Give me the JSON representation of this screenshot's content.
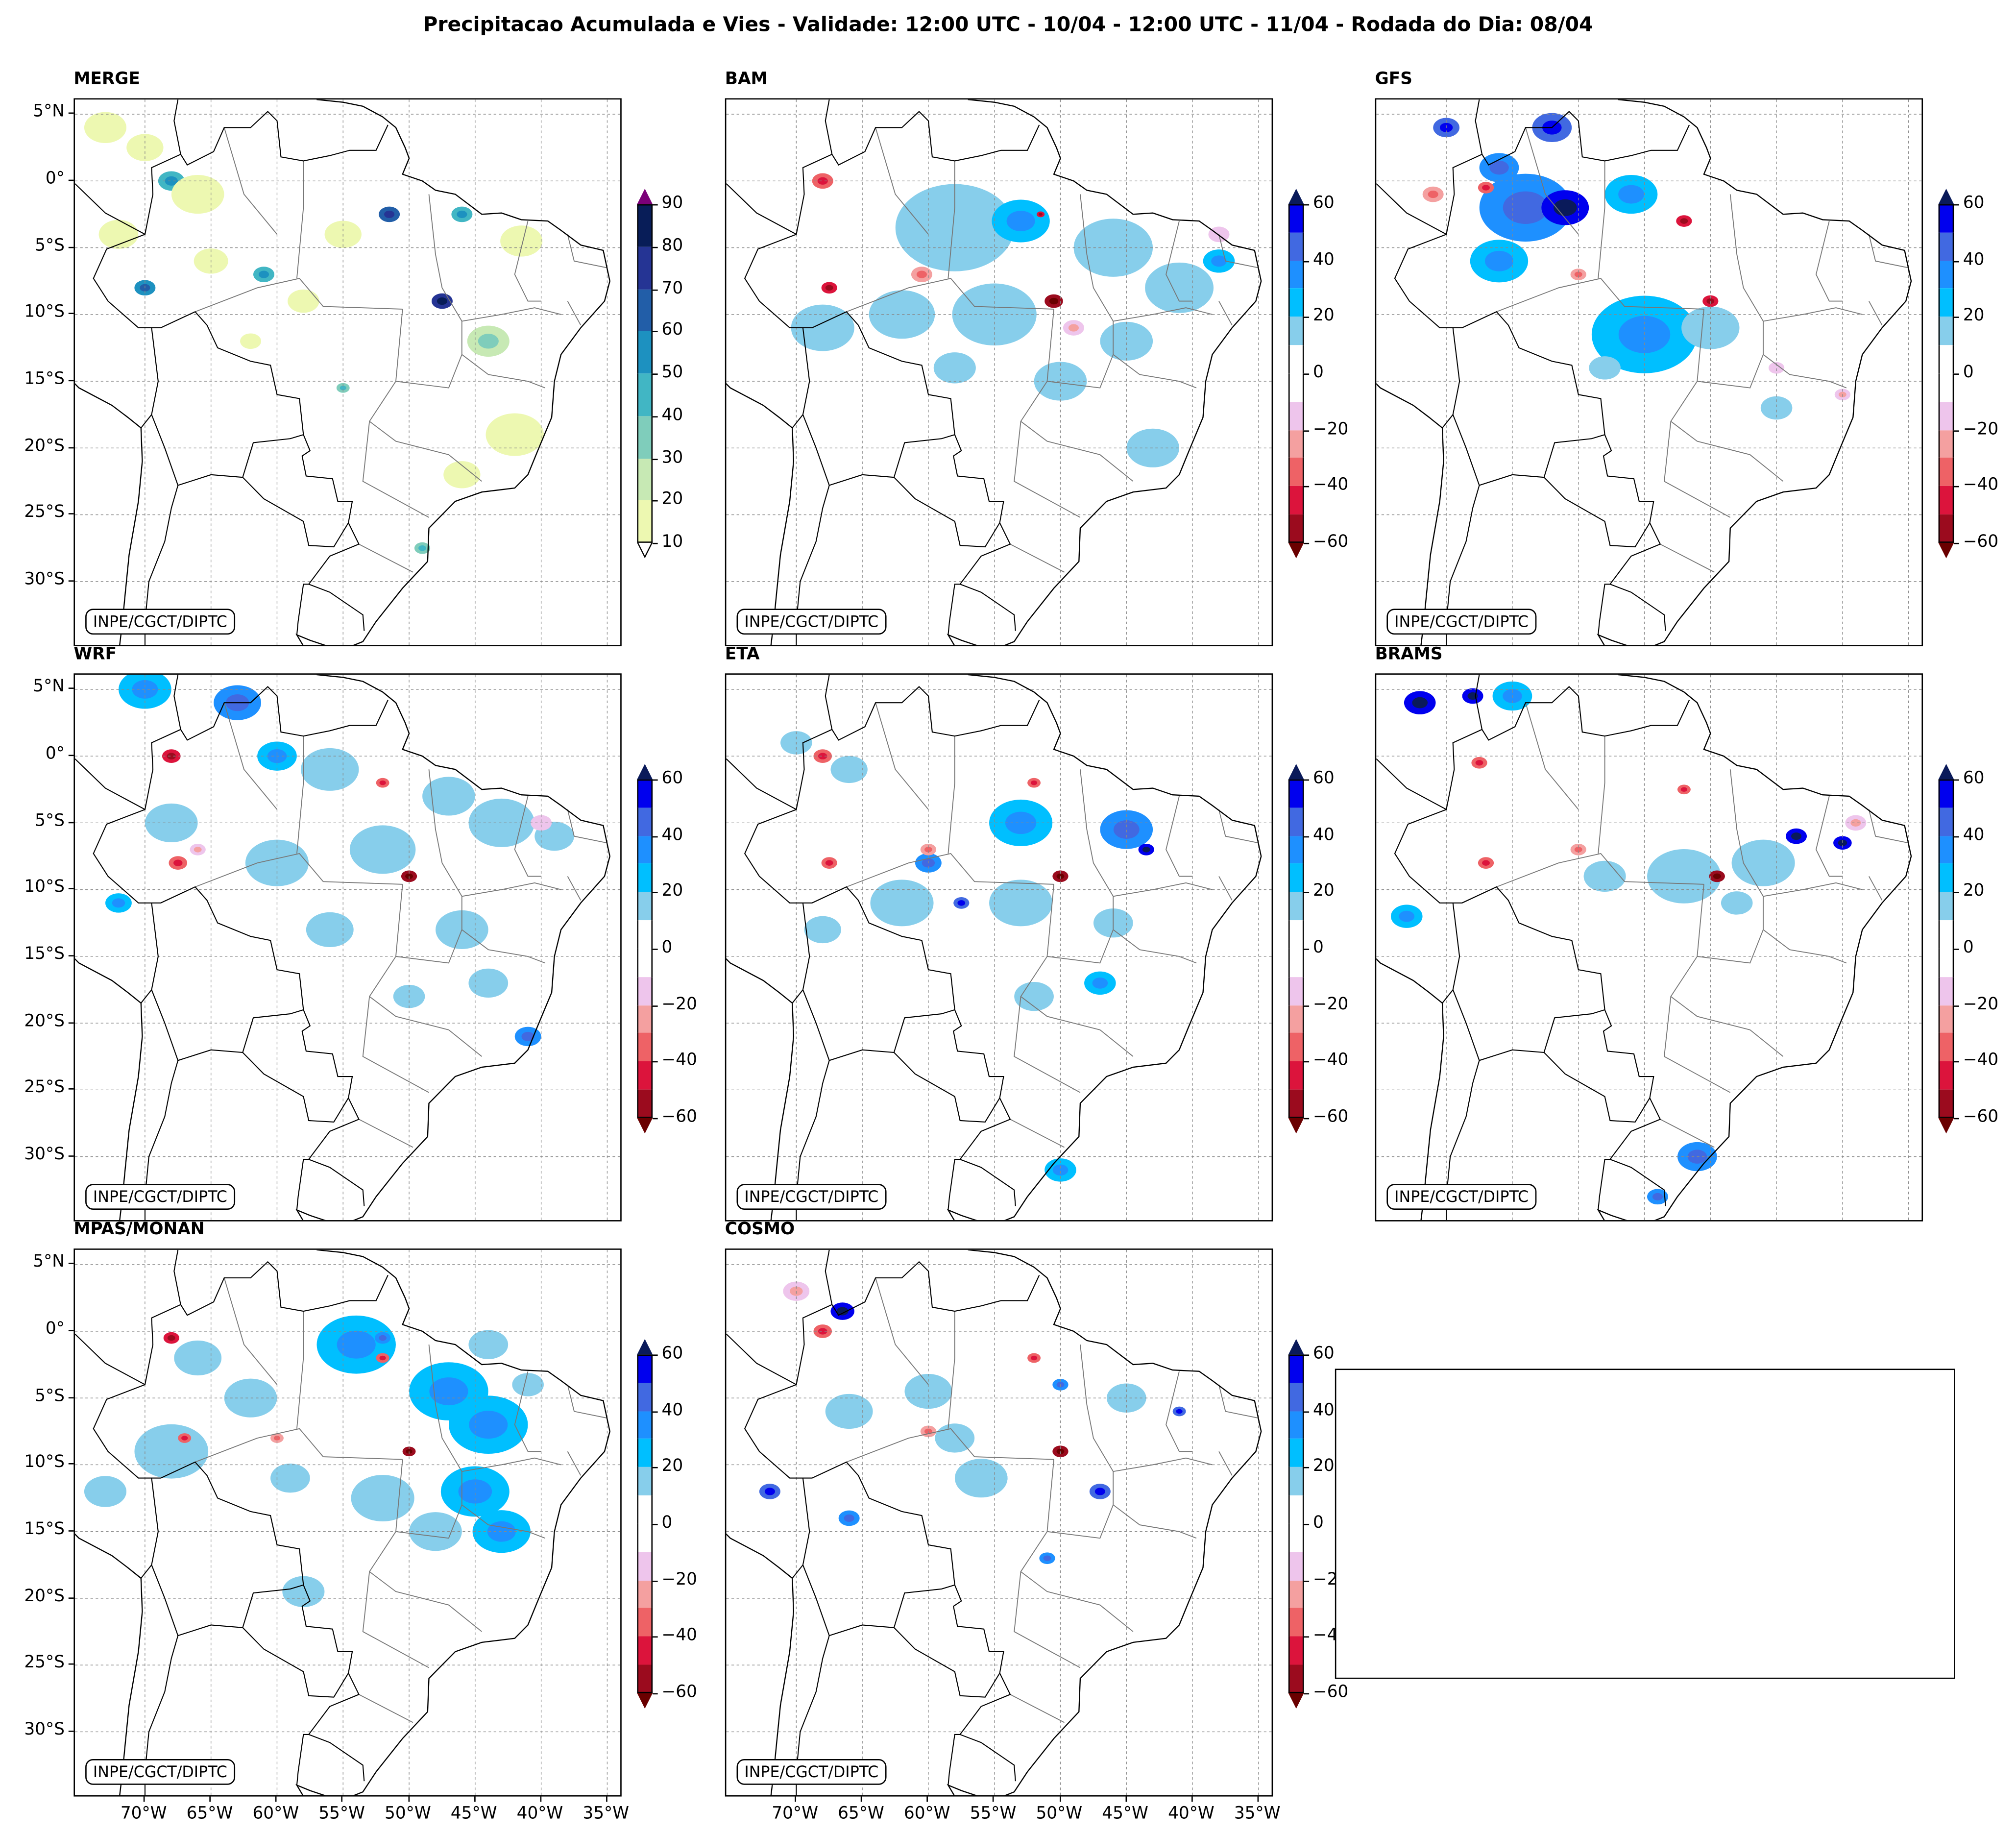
{
  "title": "Precipitacao Acumulada e Vies - Validade: 12:00 UTC - 10/04 - 12:00 UTC - 11/04 - Rodada do Dia: 08/04",
  "credit": "INPE/CGCT/DIPTC",
  "lat_labels": [
    "5°N",
    "0°",
    "5°S",
    "10°S",
    "15°S",
    "20°S",
    "25°S",
    "30°S"
  ],
  "lat_values": [
    5,
    0,
    -5,
    -10,
    -15,
    -20,
    -25,
    -30
  ],
  "lon_labels": [
    "70°W",
    "65°W",
    "60°W",
    "55°W",
    "50°W",
    "45°W",
    "40°W",
    "35°W"
  ],
  "lon_values": [
    -70,
    -65,
    -60,
    -55,
    -50,
    -45,
    -40,
    -35
  ],
  "colorbars": {
    "precip": {
      "levels": [
        10,
        20,
        30,
        40,
        50,
        60,
        70,
        80,
        90
      ],
      "ticks": [
        "10",
        "20",
        "30",
        "40",
        "50",
        "60",
        "70",
        "80",
        "90"
      ],
      "colors": [
        "#edf8b1",
        "#c7e9b4",
        "#7fcdbb",
        "#41b6c4",
        "#1d91c0",
        "#225ea8",
        "#253494",
        "#081d58"
      ],
      "over": "#7b0078",
      "under": "#ffffff"
    },
    "bias": {
      "levels": [
        -60,
        -50,
        -40,
        -30,
        -20,
        -10,
        0,
        10,
        20,
        30,
        40,
        50,
        60
      ],
      "ticks": [
        "−60",
        "−40",
        "−20",
        "0",
        "20",
        "40",
        "60"
      ],
      "colors": [
        "#9b0b1e",
        "#dc143c",
        "#ee6266",
        "#f4a0a0",
        "#eec5ec",
        "#ffffff",
        "#ffffff",
        "#87ceeb",
        "#00bfff",
        "#1e90ff",
        "#4169e1",
        "#0000ee"
      ],
      "over": "#0a1a5a",
      "under": "#6a0000"
    }
  },
  "panels": [
    {
      "title": "MERGE",
      "scale": "precip",
      "cells": [
        [
          -73,
          4,
          12,
          1.6
        ],
        [
          -70,
          2.5,
          14,
          1.4
        ],
        [
          -68,
          0,
          45,
          1.0
        ],
        [
          -66,
          -1,
          12,
          2.0
        ],
        [
          -72,
          -4,
          14,
          1.5
        ],
        [
          -70,
          -8,
          55,
          0.8
        ],
        [
          -65,
          -6,
          15,
          1.3
        ],
        [
          -61,
          -7,
          42,
          0.8
        ],
        [
          -58,
          -9,
          12,
          1.2
        ],
        [
          -55,
          -4,
          13,
          1.4
        ],
        [
          -51.5,
          -2.5,
          62,
          0.8
        ],
        [
          -47.5,
          -9,
          72,
          0.8
        ],
        [
          -46,
          -2.5,
          40,
          0.8
        ],
        [
          -44,
          -12,
          22,
          1.6
        ],
        [
          -41.5,
          -4.5,
          15,
          1.6
        ],
        [
          -42,
          -19,
          14,
          2.2
        ],
        [
          -46,
          -22,
          12,
          1.4
        ],
        [
          -49,
          -27.5,
          35,
          0.6
        ],
        [
          -55,
          -15.5,
          30,
          0.5
        ],
        [
          -62,
          -12,
          12,
          0.8
        ]
      ]
    },
    {
      "title": "BAM",
      "scale": "bias",
      "cells": [
        [
          -58,
          -3.5,
          15,
          4.5
        ],
        [
          -53,
          -3,
          22,
          2.2
        ],
        [
          -46,
          -5,
          15,
          3.0
        ],
        [
          -41,
          -8,
          14,
          2.6
        ],
        [
          -38,
          -6,
          22,
          1.2
        ],
        [
          -55,
          -10,
          14,
          3.2
        ],
        [
          -62,
          -10,
          15,
          2.5
        ],
        [
          -68,
          -11,
          14,
          2.4
        ],
        [
          -45,
          -12,
          15,
          2.0
        ],
        [
          -43,
          -20,
          14,
          2.0
        ],
        [
          -50,
          -15,
          13,
          2.0
        ],
        [
          -58,
          -14,
          14,
          1.6
        ],
        [
          -68,
          0,
          -35,
          0.8
        ],
        [
          -60.5,
          -7,
          -30,
          0.8
        ],
        [
          -67.5,
          -8,
          -45,
          0.6
        ],
        [
          -50.5,
          -9,
          -55,
          0.7
        ],
        [
          -51.5,
          -2.5,
          -50,
          0.3
        ],
        [
          -49,
          -11,
          -20,
          0.8
        ],
        [
          -38,
          -4,
          -15,
          0.8
        ]
      ]
    },
    {
      "title": "GFS",
      "scale": "bias",
      "cells": [
        [
          -64,
          -2,
          35,
          3.5
        ],
        [
          -61,
          -2,
          50,
          1.8
        ],
        [
          -66,
          1,
          35,
          1.5
        ],
        [
          -62,
          4,
          45,
          1.5
        ],
        [
          -66,
          -6,
          25,
          2.2
        ],
        [
          -70,
          4,
          40,
          1.0
        ],
        [
          -56,
          -1,
          25,
          2.0
        ],
        [
          -55,
          -11.5,
          20,
          4.0
        ],
        [
          -50,
          -11,
          15,
          2.2
        ],
        [
          -45,
          -17,
          15,
          1.2
        ],
        [
          -58,
          -14,
          13,
          1.2
        ],
        [
          -67,
          -0.5,
          -40,
          0.6
        ],
        [
          -71,
          -1,
          -25,
          0.8
        ],
        [
          -52,
          -3,
          -45,
          0.6
        ],
        [
          -50,
          -9,
          -50,
          0.6
        ],
        [
          -60,
          -7,
          -25,
          0.6
        ],
        [
          -40,
          -16,
          -20,
          0.6
        ],
        [
          -45,
          -14,
          -15,
          0.6
        ]
      ]
    },
    {
      "title": "WRF",
      "scale": "bias",
      "cells": [
        [
          -70,
          5,
          25,
          2.0
        ],
        [
          -63,
          4,
          30,
          1.8
        ],
        [
          -60,
          0,
          22,
          1.5
        ],
        [
          -56,
          -1,
          15,
          2.2
        ],
        [
          -47,
          -3,
          15,
          2.0
        ],
        [
          -43,
          -5,
          14,
          2.5
        ],
        [
          -39,
          -6,
          16,
          1.5
        ],
        [
          -52,
          -7,
          14,
          2.5
        ],
        [
          -60,
          -8,
          15,
          2.4
        ],
        [
          -68,
          -5,
          14,
          2.0
        ],
        [
          -72,
          -11,
          25,
          1.0
        ],
        [
          -56,
          -13,
          14,
          1.8
        ],
        [
          -46,
          -13,
          15,
          2.0
        ],
        [
          -44,
          -17,
          14,
          1.5
        ],
        [
          -41,
          -21,
          35,
          1.0
        ],
        [
          -50,
          -18,
          13,
          1.2
        ],
        [
          -68,
          0,
          -45,
          0.7
        ],
        [
          -67.5,
          -8,
          -40,
          0.7
        ],
        [
          -52,
          -2,
          -40,
          0.5
        ],
        [
          -50,
          -9,
          -55,
          0.6
        ],
        [
          -66,
          -7,
          -20,
          0.6
        ],
        [
          -40,
          -5,
          -15,
          0.8
        ]
      ]
    },
    {
      "title": "ETA",
      "scale": "bias",
      "cells": [
        [
          -53,
          -5,
          55,
          1.5
        ],
        [
          -53,
          -5,
          20,
          2.4
        ],
        [
          -45,
          -5.5,
          30,
          2.0
        ],
        [
          -43.5,
          -7,
          50,
          0.6
        ],
        [
          -60,
          -8,
          35,
          1.0
        ],
        [
          -57.5,
          -11,
          45,
          0.6
        ],
        [
          -62,
          -11,
          15,
          2.4
        ],
        [
          -70,
          1,
          15,
          1.2
        ],
        [
          -66,
          -1,
          14,
          1.4
        ],
        [
          -53,
          -11,
          14,
          2.4
        ],
        [
          -46,
          -12.5,
          15,
          1.5
        ],
        [
          -47,
          -17,
          20,
          1.2
        ],
        [
          -52,
          -18,
          14,
          1.5
        ],
        [
          -68,
          -13,
          14,
          1.4
        ],
        [
          -50,
          -31,
          25,
          1.2
        ],
        [
          -68,
          0,
          -40,
          0.7
        ],
        [
          -67.5,
          -8,
          -40,
          0.6
        ],
        [
          -60,
          -7,
          -30,
          0.6
        ],
        [
          -52,
          -2,
          -40,
          0.5
        ],
        [
          -50,
          -9,
          -55,
          0.6
        ]
      ]
    },
    {
      "title": "BRAMS",
      "scale": "bias",
      "cells": [
        [
          -72,
          4,
          55,
          1.2
        ],
        [
          -68,
          4.5,
          55,
          0.8
        ],
        [
          -65,
          4.5,
          25,
          1.5
        ],
        [
          -73,
          -12,
          20,
          1.2
        ],
        [
          -43.5,
          -6,
          55,
          0.8
        ],
        [
          -40,
          -6.5,
          50,
          0.7
        ],
        [
          -46,
          -8,
          15,
          2.4
        ],
        [
          -52,
          -9,
          14,
          2.8
        ],
        [
          -58,
          -9,
          14,
          1.6
        ],
        [
          -48,
          -11,
          14,
          1.2
        ],
        [
          -51,
          -30,
          35,
          1.5
        ],
        [
          -54,
          -33,
          35,
          0.8
        ],
        [
          -67.5,
          -0.5,
          -40,
          0.6
        ],
        [
          -60,
          -7,
          -30,
          0.6
        ],
        [
          -52,
          -2.5,
          -40,
          0.5
        ],
        [
          -49.5,
          -9,
          -55,
          0.6
        ],
        [
          -67,
          -8,
          -40,
          0.6
        ],
        [
          -39,
          -5,
          -20,
          0.8
        ]
      ]
    },
    {
      "title": "MPAS/MONAN",
      "scale": "bias",
      "cells": [
        [
          -54,
          -1,
          20,
          3.0
        ],
        [
          -52,
          -0.5,
          35,
          0.6
        ],
        [
          -47,
          -4.5,
          22,
          3.0
        ],
        [
          -44,
          -7,
          20,
          3.0
        ],
        [
          -45,
          -12,
          20,
          2.6
        ],
        [
          -43,
          -15,
          20,
          2.2
        ],
        [
          -52,
          -12.5,
          18,
          2.4
        ],
        [
          -48,
          -15,
          15,
          2.0
        ],
        [
          -58,
          -19.5,
          15,
          1.6
        ],
        [
          -68,
          -9,
          14,
          2.8
        ],
        [
          -73,
          -12,
          15,
          1.6
        ],
        [
          -62,
          -5,
          14,
          2.0
        ],
        [
          -66,
          -2,
          14,
          1.8
        ],
        [
          -59,
          -11,
          14,
          1.5
        ],
        [
          -44,
          -1,
          14,
          1.5
        ],
        [
          -41,
          -4,
          14,
          1.2
        ],
        [
          -68,
          -0.5,
          -45,
          0.6
        ],
        [
          -67,
          -8,
          -40,
          0.5
        ],
        [
          -52,
          -2,
          -40,
          0.5
        ],
        [
          -50,
          -9,
          -55,
          0.5
        ],
        [
          -60,
          -8,
          -25,
          0.5
        ]
      ]
    },
    {
      "title": "COSMO",
      "scale": "bias",
      "cells": [
        [
          -66.5,
          1.5,
          55,
          0.9
        ],
        [
          -60,
          -5,
          45,
          0.8
        ],
        [
          -60,
          -4.5,
          15,
          1.8
        ],
        [
          -55,
          -11,
          35,
          1.0
        ],
        [
          -56,
          -11,
          15,
          2.0
        ],
        [
          -47,
          -12,
          45,
          0.8
        ],
        [
          -72,
          -12,
          45,
          0.8
        ],
        [
          -66,
          -14,
          35,
          0.8
        ],
        [
          -50,
          -4,
          30,
          0.6
        ],
        [
          -41,
          -6,
          40,
          0.5
        ],
        [
          -51,
          -17,
          35,
          0.6
        ],
        [
          -66,
          -6,
          14,
          1.8
        ],
        [
          -58,
          -8,
          14,
          1.5
        ],
        [
          -45,
          -5,
          14,
          1.5
        ],
        [
          -68,
          0,
          -40,
          0.7
        ],
        [
          -60,
          -7.5,
          -25,
          0.6
        ],
        [
          -52,
          -2,
          -40,
          0.5
        ],
        [
          -50,
          -9,
          -55,
          0.6
        ],
        [
          -70,
          3,
          -20,
          1.0
        ]
      ]
    }
  ]
}
